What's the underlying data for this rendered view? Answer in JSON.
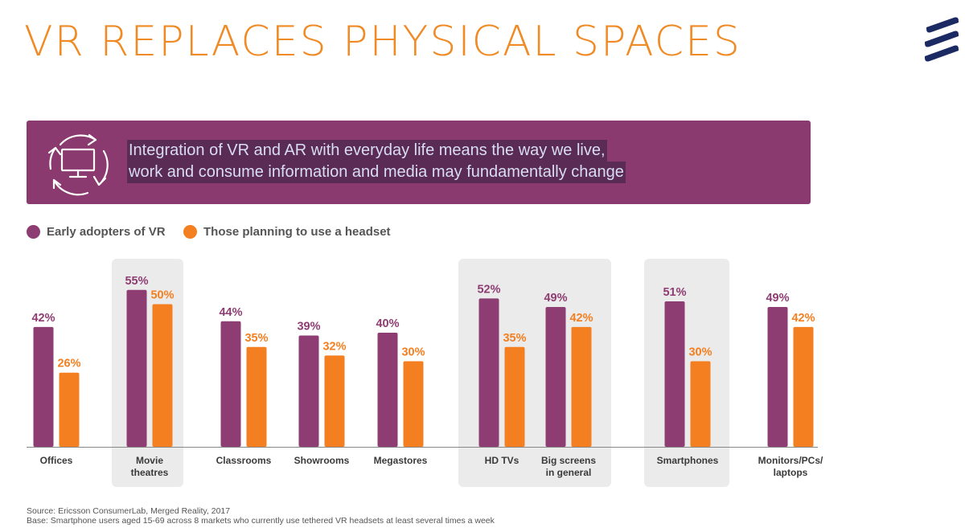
{
  "title": "VR REPLACES PHYSICAL SPACES",
  "banner": {
    "line1": "Integration of VR and AR with everyday life means the way we live,",
    "line2": "work and consume information and media may fundamentally change",
    "icon": "monitor-cycle-icon"
  },
  "colors": {
    "accent": "#f08a24",
    "purple": "#8e3d72",
    "banner": "#8a3a6e",
    "logo": "#1b2a63"
  },
  "chart_data": {
    "type": "bar",
    "categories": [
      "Offices",
      "Movie theatres",
      "Classrooms",
      "Showrooms",
      "Megastores",
      "HD TVs",
      "Big screens in general",
      "Smartphones",
      "Monitors/PCs/ laptops"
    ],
    "category_lines": [
      [
        "Offices"
      ],
      [
        "Movie",
        "theatres"
      ],
      [
        "Classrooms"
      ],
      [
        "Showrooms"
      ],
      [
        "Megastores"
      ],
      [
        "HD TVs"
      ],
      [
        "Big screens",
        "in general"
      ],
      [
        "Smartphones"
      ],
      [
        "Monitors/PCs/",
        "laptops"
      ]
    ],
    "series": [
      {
        "name": "Early adopters of VR",
        "color": "#8e3d72",
        "values": [
          42,
          55,
          44,
          39,
          40,
          52,
          49,
          51,
          49
        ]
      },
      {
        "name": "Those planning to use a headset",
        "color": "#f47f20",
        "values": [
          26,
          50,
          35,
          32,
          30,
          35,
          42,
          30,
          42
        ]
      }
    ],
    "value_suffix": "%",
    "ylim": [
      0,
      60
    ],
    "highlighted_groups": [
      [
        1
      ],
      [
        5,
        6
      ],
      [
        7
      ]
    ],
    "legend_position": "top-left"
  },
  "source": {
    "line1": "Source: Ericsson ConsumerLab, Merged Reality, 2017",
    "line2": "Base: Smartphone users aged 15-69 across 8 markets who currently use tethered VR headsets at least several times a week"
  }
}
